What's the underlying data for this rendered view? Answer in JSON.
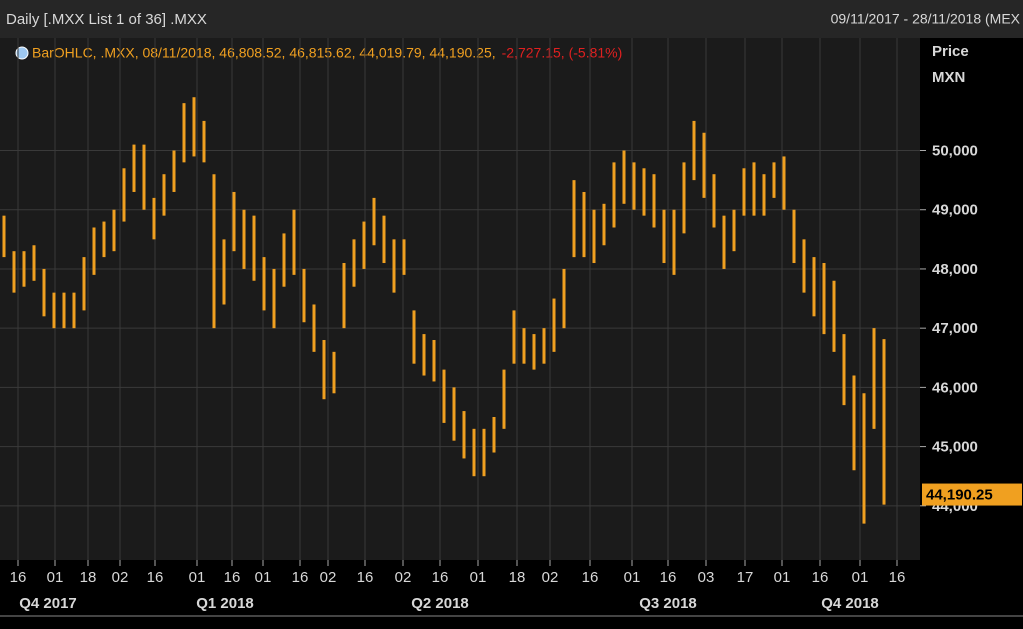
{
  "chart_data": {
    "type": "ohlc",
    "title": "Daily [.MXX List 1 of 36] .MXX",
    "date_range": "09/11/2017 - 28/11/2018 (MEX",
    "legend": {
      "text": "BarOHLC, .MXX, 08/11/2018, 46,808.52, 46,815.62, 44,019.79, 44,190.25,",
      "change": "-2,727.15, (-5.81%)"
    },
    "y_label": "Price",
    "y_unit": "MXN",
    "color": "#f0a020",
    "grid": true,
    "high": [
      48.9,
      48.3,
      48.3,
      48.4,
      48.0,
      47.6,
      47.6,
      47.6,
      48.2,
      48.7,
      48.8,
      49.0,
      49.7,
      50.1,
      50.1,
      49.2,
      49.6,
      50.0,
      50.8,
      50.9,
      50.5,
      49.6,
      48.5,
      49.3,
      49.0,
      48.9,
      48.2,
      48.0,
      48.6,
      49.0,
      48.0,
      47.4,
      46.8,
      46.6,
      48.1,
      48.5,
      48.8,
      49.2,
      48.9,
      48.5,
      48.5,
      47.3,
      46.9,
      46.8,
      46.3,
      46.0,
      45.6,
      45.3,
      45.3,
      45.5,
      46.3,
      47.3,
      47.0,
      46.9,
      47.0,
      47.5,
      48.0,
      49.5,
      49.3,
      49.0,
      49.1,
      49.8,
      50.0,
      49.8,
      49.7,
      49.6,
      49.0,
      49.0,
      49.8,
      50.5,
      50.3,
      49.6,
      48.9,
      49.0,
      49.7,
      49.8,
      49.6,
      49.8,
      49.9,
      49.0,
      48.5,
      48.2,
      48.1,
      47.8,
      46.9,
      46.2,
      45.9,
      47.0,
      46.81562
    ],
    "low": [
      48.2,
      47.6,
      47.7,
      47.8,
      47.2,
      47.0,
      47.0,
      47.0,
      47.3,
      47.9,
      48.2,
      48.3,
      48.8,
      49.3,
      49.0,
      48.5,
      48.9,
      49.3,
      49.8,
      49.9,
      49.8,
      47.0,
      47.4,
      48.3,
      48.0,
      47.8,
      47.3,
      47.0,
      47.7,
      47.9,
      47.1,
      46.6,
      45.8,
      45.9,
      47.0,
      47.7,
      48.0,
      48.4,
      48.1,
      47.6,
      47.9,
      46.4,
      46.2,
      46.1,
      45.4,
      45.1,
      44.8,
      44.5,
      44.5,
      44.9,
      45.3,
      46.4,
      46.4,
      46.3,
      46.4,
      46.6,
      47.0,
      48.2,
      48.2,
      48.1,
      48.4,
      48.7,
      49.1,
      49.0,
      48.9,
      48.7,
      48.1,
      47.9,
      48.6,
      49.5,
      49.2,
      48.7,
      48.0,
      48.3,
      48.9,
      48.9,
      48.9,
      49.2,
      49.0,
      48.1,
      47.6,
      47.2,
      46.9,
      46.6,
      45.7,
      44.6,
      43.7,
      45.3,
      44.01979
    ],
    "ylim": [
      43.085,
      51.9
    ],
    "yticks": [
      {
        "value": 44,
        "label": "44,000"
      },
      {
        "value": 45,
        "label": "45,000"
      },
      {
        "value": 46,
        "label": "46,000"
      },
      {
        "value": 47,
        "label": "47,000"
      },
      {
        "value": 48,
        "label": "48,000"
      },
      {
        "value": 49,
        "label": "49,000"
      },
      {
        "value": 50,
        "label": "50,000"
      }
    ],
    "last_price": {
      "value": 44.19025,
      "label": "44,190.25"
    },
    "xlim": [
      -0.4,
      91.6
    ],
    "xticks": [
      {
        "value": 1.4,
        "label": "16"
      },
      {
        "value": 5.1,
        "label": "01"
      },
      {
        "value": 8.4,
        "label": "18"
      },
      {
        "value": 11.6,
        "label": "02"
      },
      {
        "value": 15.1,
        "label": "16"
      },
      {
        "value": 19.3,
        "label": "01"
      },
      {
        "value": 22.8,
        "label": "16"
      },
      {
        "value": 25.9,
        "label": "01"
      },
      {
        "value": 29.6,
        "label": "16"
      },
      {
        "value": 32.4,
        "label": "02"
      },
      {
        "value": 36.1,
        "label": "16"
      },
      {
        "value": 39.9,
        "label": "02"
      },
      {
        "value": 43.6,
        "label": "16"
      },
      {
        "value": 47.4,
        "label": "01"
      },
      {
        "value": 51.3,
        "label": "18"
      },
      {
        "value": 54.6,
        "label": "02"
      },
      {
        "value": 58.6,
        "label": "16"
      },
      {
        "value": 62.8,
        "label": "01"
      },
      {
        "value": 66.4,
        "label": "16"
      },
      {
        "value": 70.2,
        "label": "03"
      },
      {
        "value": 74.1,
        "label": "17"
      },
      {
        "value": 77.8,
        "label": "01"
      },
      {
        "value": 81.6,
        "label": "16"
      },
      {
        "value": 85.6,
        "label": "01"
      },
      {
        "value": 89.3,
        "label": "16"
      }
    ],
    "periods": [
      {
        "value": 4.4,
        "label": "Q4 2017"
      },
      {
        "value": 22.1,
        "label": "Q1 2018"
      },
      {
        "value": 43.6,
        "label": "Q2 2018"
      },
      {
        "value": 66.4,
        "label": "Q3 2018"
      },
      {
        "value": 84.6,
        "label": "Q4 2018"
      }
    ]
  }
}
